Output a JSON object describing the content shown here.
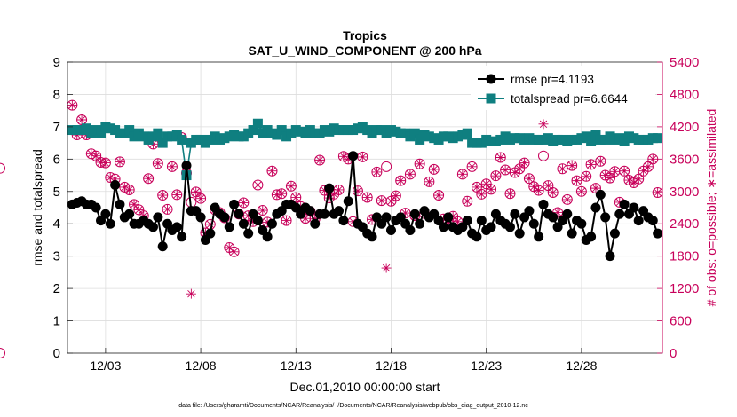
{
  "chart_data": {
    "type": "line",
    "title": "Tropics",
    "subtitle": "SAT_U_WIND_COMPONENT @ 200 hPa",
    "xlabel": "Dec.01,2010 00:00:00 start",
    "ylabel": "rmse and totalspread",
    "y2label": "# of obs: o=possible; ∗=assimilated",
    "footer": "data file: /Users/gharamti/Documents/NCAR/Reanalysis/~/Documents/NCAR/Reanalysis/webpub/obs_diag_output_2010-12.nc",
    "xlim": [
      1,
      32.25
    ],
    "ylim": [
      0,
      9
    ],
    "y2lim": [
      0,
      5400
    ],
    "xticks": [
      3,
      8,
      13,
      18,
      23,
      28
    ],
    "xtick_labels": [
      "12/03",
      "12/08",
      "12/13",
      "12/18",
      "12/23",
      "12/28"
    ],
    "yticks": [
      0,
      1,
      2,
      3,
      4,
      5,
      6,
      7,
      8,
      9
    ],
    "ytick_labels": [
      "0",
      "1",
      "2",
      "3",
      "4",
      "5",
      "6",
      "7",
      "8",
      "9"
    ],
    "y2ticks": [
      0,
      600,
      1200,
      1800,
      2400,
      3000,
      3600,
      4200,
      4800,
      5400
    ],
    "y2tick_labels": [
      "0",
      "600",
      "1200",
      "1800",
      "2400",
      "3000",
      "3600",
      "4200",
      "4800",
      "5400"
    ],
    "grid": true,
    "legend_position": "top-right",
    "colors": {
      "rmse": "#000000",
      "spread": "#0f7f80",
      "obs": "#c8005a",
      "axis": "#222222",
      "grid": "#dddddd"
    },
    "x": [
      1.25,
      1.5,
      1.75,
      2,
      2.25,
      2.5,
      2.75,
      3,
      3.25,
      3.5,
      3.75,
      4,
      4.25,
      4.5,
      4.75,
      5,
      5.25,
      5.5,
      5.75,
      6,
      6.25,
      6.5,
      6.75,
      7,
      7.25,
      7.5,
      7.75,
      8,
      8.25,
      8.5,
      8.75,
      9,
      9.25,
      9.5,
      9.75,
      10,
      10.25,
      10.5,
      10.75,
      11,
      11.25,
      11.5,
      11.75,
      12,
      12.25,
      12.5,
      12.75,
      13,
      13.25,
      13.5,
      13.75,
      14,
      14.25,
      14.5,
      14.75,
      15,
      15.25,
      15.5,
      15.75,
      16,
      16.25,
      16.5,
      16.75,
      17,
      17.25,
      17.5,
      17.75,
      18,
      18.25,
      18.5,
      18.75,
      19,
      19.25,
      19.5,
      19.75,
      20,
      20.25,
      20.5,
      20.75,
      21,
      21.25,
      21.5,
      21.75,
      22,
      22.25,
      22.5,
      22.75,
      23,
      23.25,
      23.5,
      23.75,
      24,
      24.25,
      24.5,
      24.75,
      25,
      25.25,
      25.5,
      25.75,
      26,
      26.25,
      26.5,
      26.75,
      27,
      27.25,
      27.5,
      27.75,
      28,
      28.25,
      28.5,
      28.75,
      29,
      29.25,
      29.5,
      29.75,
      30,
      30.25,
      30.5,
      30.75,
      31,
      31.25,
      31.5,
      31.75,
      32
    ],
    "series": [
      {
        "name": "rmse",
        "legend": "rmse pr=4.1193",
        "values": [
          4.6,
          4.65,
          4.7,
          4.6,
          4.6,
          4.5,
          4.1,
          4.3,
          4.0,
          5.2,
          4.6,
          4.2,
          4.3,
          4.0,
          4.0,
          4.1,
          4.0,
          3.9,
          4.2,
          3.3,
          4.0,
          3.8,
          3.9,
          3.6,
          5.8,
          4.4,
          4.4,
          4.2,
          3.5,
          3.7,
          4.5,
          4.3,
          4.2,
          3.9,
          4.6,
          4.3,
          4.0,
          3.7,
          4.3,
          4.1,
          3.8,
          3.6,
          4.0,
          4.3,
          4.4,
          4.6,
          4.6,
          4.5,
          4.3,
          4.5,
          4.4,
          4.0,
          4.3,
          4.3,
          5.1,
          4.3,
          4.4,
          4.1,
          4.7,
          6.1,
          4.0,
          3.9,
          3.7,
          3.6,
          4.2,
          4.0,
          4.2,
          3.8,
          4.1,
          4.2,
          4.0,
          3.8,
          4.3,
          4.0,
          4.4,
          4.2,
          4.3,
          4.1,
          3.9,
          4.2,
          3.9,
          3.8,
          3.9,
          4.1,
          3.7,
          3.6,
          4.1,
          3.8,
          3.9,
          4.3,
          4.1,
          4.0,
          3.9,
          4.3,
          3.7,
          4.2,
          4.4,
          4.0,
          3.6,
          4.6,
          4.3,
          4.2,
          3.9,
          4.1,
          4.3,
          3.7,
          4.1,
          4.0,
          3.5,
          3.6,
          4.5,
          4.9,
          4.2,
          3.0,
          3.7,
          4.3,
          4.6,
          4.3,
          4.5,
          4.1,
          4.4,
          4.2,
          4.1,
          3.7
        ]
      },
      {
        "name": "totalspread",
        "legend": "totalspread pr=6.6644",
        "values": [
          6.9,
          6.9,
          6.9,
          6.95,
          6.8,
          6.9,
          6.8,
          7.0,
          6.95,
          6.9,
          6.8,
          6.8,
          6.9,
          6.7,
          6.8,
          6.7,
          6.6,
          6.7,
          6.8,
          6.5,
          6.7,
          6.7,
          6.75,
          6.6,
          5.5,
          6.5,
          6.6,
          6.6,
          6.5,
          6.6,
          6.7,
          6.6,
          6.65,
          6.7,
          6.75,
          6.7,
          6.7,
          6.8,
          6.9,
          7.1,
          6.8,
          6.9,
          6.8,
          6.75,
          6.9,
          6.7,
          6.8,
          6.9,
          6.85,
          6.8,
          6.9,
          6.8,
          6.8,
          6.9,
          6.85,
          6.95,
          6.9,
          6.9,
          6.9,
          6.9,
          6.95,
          7.0,
          6.9,
          6.8,
          6.9,
          6.9,
          6.8,
          6.9,
          6.85,
          6.8,
          6.8,
          6.7,
          6.8,
          6.6,
          6.75,
          6.7,
          6.65,
          6.6,
          6.7,
          6.7,
          6.65,
          6.7,
          6.75,
          6.8,
          6.5,
          6.5,
          6.5,
          6.6,
          6.55,
          6.55,
          6.6,
          6.7,
          6.6,
          6.65,
          6.65,
          6.6,
          6.65,
          6.6,
          6.6,
          6.6,
          6.65,
          6.55,
          6.6,
          6.6,
          6.55,
          6.6,
          6.6,
          6.65,
          6.7,
          6.55,
          6.75,
          6.6,
          6.6,
          6.7,
          6.6,
          6.65,
          6.55,
          6.7,
          6.65,
          6.6,
          6.6,
          6.6,
          6.65,
          6.65
        ]
      }
    ],
    "obs_possible": [
      4600,
      4050,
      4330,
      4050,
      3700,
      3660,
      3540,
      3530,
      3260,
      3230,
      3550,
      3080,
      3030,
      2760,
      2660,
      2550,
      3240,
      3880,
      3520,
      2930,
      2670,
      3460,
      2940,
      4000,
      3340,
      2800,
      2990,
      2870,
      2230,
      2390,
      2660,
      2610,
      2510,
      1960,
      1880,
      2580,
      2790,
      2550,
      2440,
      3120,
      2650,
      2430,
      3380,
      2940,
      2960,
      2460,
      3100,
      2890,
      2720,
      2500,
      2630,
      2490,
      3580,
      3020,
      2880,
      2950,
      3030,
      3650,
      3600,
      2440,
      3010,
      3640,
      2890,
      2480,
      3360,
      2830,
      3460,
      2820,
      2920,
      3200,
      2600,
      3320,
      2550,
      3510,
      2590,
      3180,
      3410,
      2930,
      2490,
      2420,
      2540,
      2440,
      3320,
      2820,
      3460,
      3080,
      2950,
      3140,
      3040,
      3290,
      3630,
      3400,
      2960,
      3350,
      3420,
      3530,
      3240,
      3090,
      3020,
      3660,
      3110,
      2980,
      2610,
      3420,
      2850,
      3480,
      3200,
      3000,
      3280,
      3500,
      3060,
      3560,
      3300,
      3250,
      3370,
      2800,
      3380,
      3210,
      3160,
      3230,
      3380,
      3460,
      3600,
      2980,
      3430,
      0
    ],
    "obs_assimilated": [
      4600,
      4050,
      4330,
      4050,
      3700,
      3660,
      3540,
      3530,
      3260,
      3230,
      3550,
      3080,
      3030,
      2760,
      2660,
      2550,
      3240,
      3880,
      3520,
      2930,
      2670,
      3460,
      2940,
      4000,
      3340,
      1100,
      2990,
      2870,
      2230,
      2390,
      2660,
      2610,
      2510,
      1960,
      1880,
      2580,
      2790,
      2550,
      2440,
      3120,
      2650,
      2430,
      3380,
      2940,
      2960,
      2460,
      3100,
      2890,
      2720,
      2500,
      2630,
      2490,
      3580,
      3020,
      2880,
      2950,
      3030,
      3650,
      3600,
      2440,
      3010,
      3640,
      2890,
      2480,
      3360,
      2830,
      1580,
      2820,
      2920,
      3200,
      2600,
      3320,
      2550,
      3510,
      2590,
      3180,
      3410,
      2930,
      2490,
      2420,
      2540,
      2440,
      3320,
      2820,
      3460,
      3080,
      2950,
      3140,
      3040,
      3290,
      3630,
      3400,
      2960,
      3350,
      3420,
      3530,
      3240,
      3090,
      3020,
      4250,
      3110,
      2980,
      2610,
      3420,
      2850,
      3480,
      3200,
      3000,
      3280,
      3500,
      3060,
      3560,
      3300,
      3250,
      3370,
      2800,
      3380,
      3210,
      3160,
      3230,
      3380,
      3460,
      3600,
      2980,
      3430,
      0
    ]
  }
}
